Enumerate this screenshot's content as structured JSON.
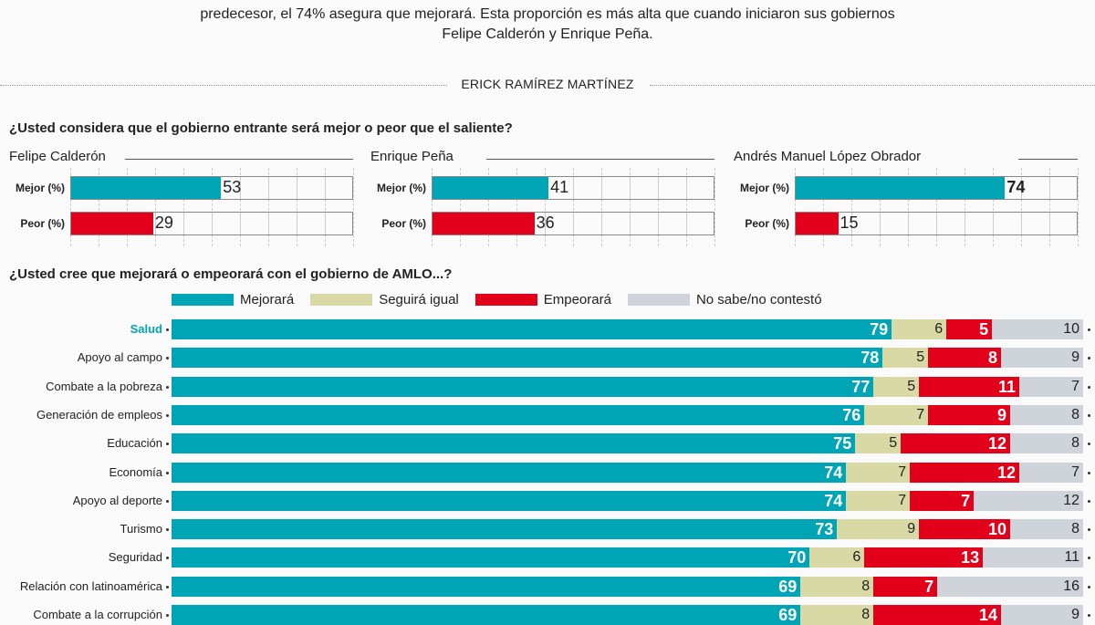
{
  "intro": {
    "line2": "predecesor, el 74% asegura que mejorará. Esta proporción es más alta que cuando iniciaron sus gobiernos",
    "line3": "Felipe Calderón y Enrique Peña."
  },
  "byline": "ERICK RAMÍREZ MARTÍNEZ",
  "colors": {
    "mejor": "#00a5b5",
    "peor": "#e2001a",
    "igual": "#d9d9a6",
    "nosabe": "#cfd4da",
    "salud_label": "#00a5b5"
  },
  "chart_data": [
    {
      "type": "bar",
      "title": "¿Usted considera que el gobierno entrante será mejor o peor que el saliente?",
      "xlim": [
        0,
        100
      ],
      "grid": true,
      "panels": [
        {
          "name": "Felipe Calderón",
          "categories": [
            "Mejor (%)",
            "Peor (%)"
          ],
          "values": [
            53,
            29
          ]
        },
        {
          "name": "Enrique Peña",
          "categories": [
            "Mejor (%)",
            "Peor (%)"
          ],
          "values": [
            41,
            36
          ]
        },
        {
          "name": "Andrés Manuel López Obrador",
          "categories": [
            "Mejor (%)",
            "Peor (%)"
          ],
          "values": [
            74,
            15
          ]
        }
      ]
    },
    {
      "type": "bar",
      "stacked": true,
      "orientation": "horizontal",
      "title": "¿Usted cree que mejorará o empeorará con el gobierno de AMLO...?",
      "legend_position": "top",
      "xlim": [
        0,
        100
      ],
      "categories": [
        "Salud",
        "Apoyo al campo",
        "Combate a la pobreza",
        "Generación de empleos",
        "Educación",
        "Economía",
        "Apoyo al deporte",
        "Turismo",
        "Seguridad",
        "Relación con latinoamérica",
        "Combate a la corrupción"
      ],
      "series": [
        {
          "name": "Mejorará",
          "values": [
            79,
            78,
            77,
            76,
            75,
            74,
            74,
            73,
            70,
            69,
            69
          ]
        },
        {
          "name": "Seguirá igual",
          "values": [
            6,
            5,
            5,
            7,
            5,
            7,
            7,
            9,
            6,
            8,
            8
          ]
        },
        {
          "name": "Empeorará",
          "values": [
            5,
            8,
            11,
            9,
            12,
            12,
            7,
            10,
            13,
            7,
            14
          ]
        },
        {
          "name": "No sabe/no contestó",
          "values": [
            10,
            9,
            7,
            8,
            8,
            7,
            12,
            8,
            11,
            16,
            9
          ]
        }
      ]
    }
  ]
}
